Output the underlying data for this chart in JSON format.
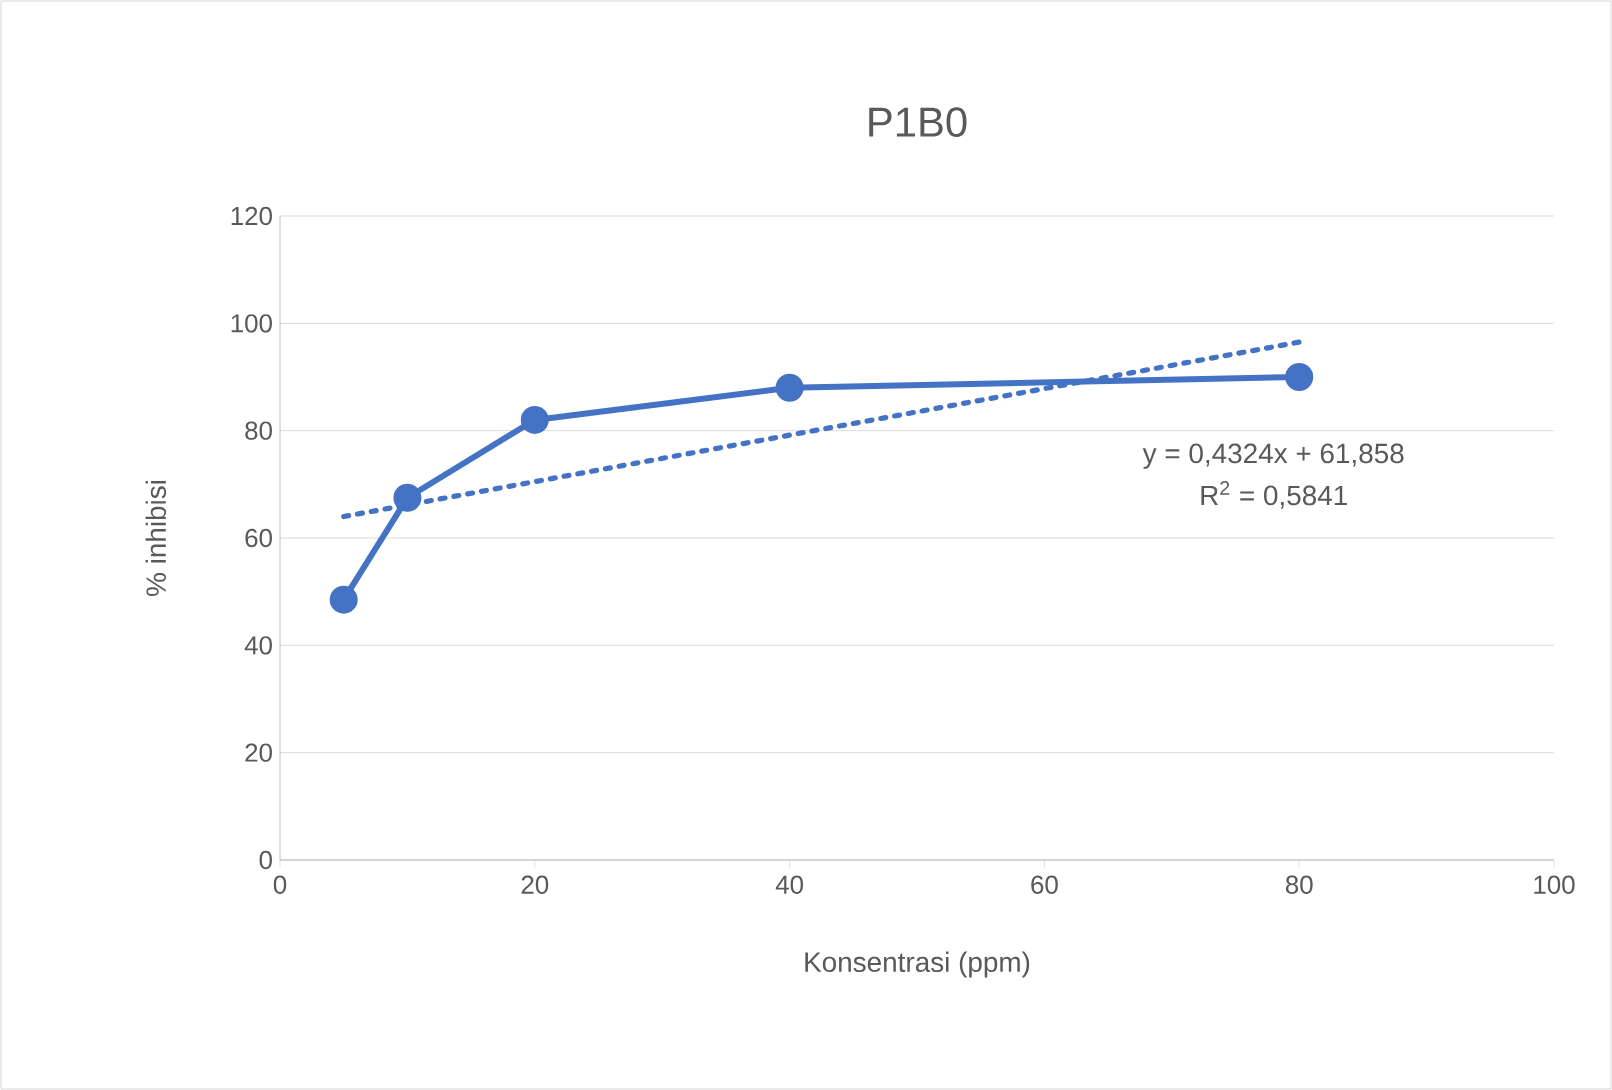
{
  "chart_data": {
    "type": "line",
    "title": "P1B0",
    "xlabel": "Konsentrasi (ppm)",
    "ylabel": "% inhibisi",
    "series": [
      {
        "x": [
          5,
          10,
          20,
          40,
          80
        ],
        "values": [
          48.5,
          67.5,
          82,
          88,
          90
        ],
        "color": "#4472c4",
        "marker": "circle",
        "line_style": "solid"
      },
      {
        "x": [
          5,
          80
        ],
        "values": [
          64,
          96.5
        ],
        "color": "#4472c4",
        "marker": "none",
        "line_style": "dotted"
      }
    ],
    "xlim": [
      0,
      100
    ],
    "xticks": [
      0,
      20,
      40,
      60,
      80,
      100
    ],
    "ylim": [
      0,
      120
    ],
    "yticks": [
      0,
      20,
      40,
      60,
      80,
      100,
      120
    ],
    "grid": "y",
    "annotations": [
      "y = 0,4324x + 61,858",
      "R$^{2}$ = 0,5841"
    ]
  }
}
